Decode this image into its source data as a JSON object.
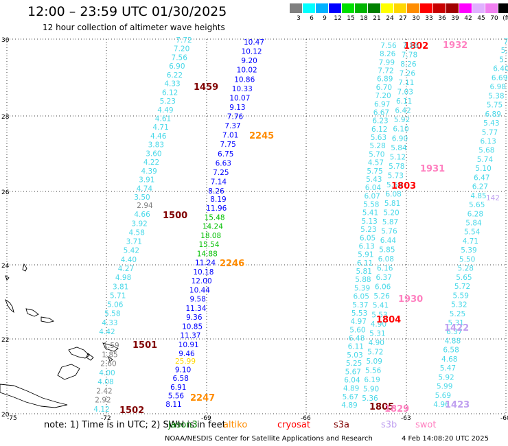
{
  "title": "12:00 – 23:59 UTC 01/30/2025",
  "subtitle": "12 hour collection of altimeter wave heights",
  "colorbar": {
    "ticks": [
      "3",
      "6",
      "9",
      "12",
      "15",
      "18",
      "21",
      "24",
      "27",
      "30",
      "33",
      "36",
      "39",
      "42",
      "45",
      "70",
      "(ft)"
    ],
    "colors": [
      "#808080",
      "#00ffff",
      "#00b2ff",
      "#0000ff",
      "#00e000",
      "#00b400",
      "#008000",
      "#ffff00",
      "#ffd700",
      "#ff8c00",
      "#ff0000",
      "#c80000",
      "#a00000",
      "#ff00ff",
      "#e0b0ff",
      "#f080f0",
      "#000000"
    ]
  },
  "axes": {
    "lon_labels": [
      "-75",
      "-72",
      "-69",
      "-66",
      "-63",
      "-60"
    ],
    "lat_labels": [
      "30",
      "28",
      "26",
      "24",
      "22",
      "20"
    ]
  },
  "tracks": [
    {
      "name": "track-1459",
      "color": "#48d8e8",
      "time": "1459",
      "time_color": "#800000",
      "values": [
        "7.72",
        "7.20",
        "7.56",
        "6.90",
        "6.22",
        "4.33",
        "6.12",
        "5.23",
        "4.49",
        "4.61",
        "4.71",
        "4.46",
        "3.83",
        "3.60",
        "4.22",
        "4.39",
        "3.91",
        "4.74",
        "3.50"
      ]
    },
    {
      "name": "track-1500",
      "color": "#48d8e8",
      "time": "1500",
      "time_color": "#800000",
      "values": [
        "2.94",
        "4.66",
        "3.92",
        "4.58",
        "3.71",
        "5.42",
        "4.40",
        "4.27",
        "4.98",
        "3.81",
        "5.71",
        "5.06",
        "5.58",
        "4.33",
        "4.42"
      ]
    },
    {
      "name": "track-1501",
      "color": "#808080",
      "time": "1501",
      "time_color": "#800000",
      "values": [
        "1.59",
        "1.85",
        "2.60",
        "4.00",
        "4.08",
        "2.42",
        "2.92",
        "4.12"
      ]
    },
    {
      "name": "track-2245",
      "color": "#0000ff",
      "time": "2245",
      "time_color": "#ff8c00",
      "values": [
        "10.47",
        "10.12",
        "9.20",
        "10.02",
        "10.86",
        "10.33",
        "10.07",
        "9.13",
        "7.76",
        "7.37",
        "7.01",
        "7.75",
        "6.75",
        "6.63",
        "7.25",
        "7.14",
        "8.26"
      ]
    },
    {
      "name": "track-2246",
      "color": "#0000ff",
      "time": "2246",
      "time_color": "#ff8c00",
      "values": [
        "8.19",
        "11.96",
        "15.48",
        "14.24",
        "18.08",
        "15.54",
        "14.88",
        "11.24",
        "10.18",
        "12.00",
        "10.44",
        "9.58",
        "11.34",
        "9.36",
        "10.85",
        "11.37",
        "10.91",
        "9.46"
      ]
    },
    {
      "name": "track-2247",
      "color": "#0000ff",
      "time": "2247",
      "time_color": "#ff8c00",
      "values": [
        "25.99",
        "9.10",
        "6.58",
        "6.91",
        "5.56",
        "8.11"
      ]
    },
    {
      "name": "track-1802",
      "color": "#48d8e8",
      "time": "1802",
      "time_color": "#ff0000",
      "values": [
        "7.56",
        "8.26",
        "7.99",
        "7.72",
        "6.89",
        "6.70",
        "7.20",
        "6.97",
        "6.67",
        "6.23",
        "6.12",
        "5.63",
        "5.28",
        "5.70",
        "4.57",
        "5.75",
        "5.43",
        "6.04",
        "6.07",
        "5.58",
        "5.41",
        "5.13",
        "5.23",
        "6.05",
        "6.13",
        "5.91",
        "6.11",
        "5.81",
        "5.88",
        "5.39",
        "6.05",
        "5.37",
        "5.53",
        "4.97",
        "5.60",
        "6.48",
        "6.11",
        "5.03",
        "5.25",
        "5.67",
        "6.04",
        "4.89",
        "5.67",
        "4.89"
      ]
    },
    {
      "name": "track-1803",
      "color": "#48d8e8",
      "time": "1803",
      "time_color": "#ff0000",
      "values": [
        "7.16",
        "7.78",
        "8.26",
        "7.26",
        "7.11",
        "7.03",
        "6.11",
        "6.42",
        "5.92",
        "6.10",
        "6.90",
        "5.84",
        "5.12",
        "5.78",
        "5.73",
        "5.54",
        "6.08",
        "5.81",
        "5.20",
        "5.87",
        "5.76",
        "6.44",
        "5.85",
        "6.08",
        "6.16",
        "6.37",
        "6.06",
        "5.26",
        "5.41",
        "5.53",
        "4.90",
        "5.31",
        "4.90",
        "5.72",
        "5.09",
        "5.56",
        "6.19",
        "5.90",
        "5.36"
      ]
    },
    {
      "name": "track-1931",
      "color": "#48d8e8",
      "time": "1931",
      "time_color": "#ff80c0",
      "values": [
        "7",
        "5.",
        "5.",
        "6.40",
        "6.69",
        "6.98",
        "5.38",
        "5.75",
        "6.89",
        "5.43",
        "5.77",
        "6.13",
        "5.68",
        "5.74",
        "5.10",
        "6.47",
        "6.27",
        "4.85",
        "5.65",
        "6.28",
        "5.84",
        "5.54",
        "4.71",
        "5.39",
        "5.50",
        "5.28",
        "5.65",
        "5.72",
        "5.59",
        "5.32",
        "5.25",
        "5.31",
        "6.37",
        "4.88",
        "6.58",
        "4.68",
        "5.47",
        "5.92",
        "5.99",
        "5.69",
        "4.96"
      ]
    },
    {
      "name": "track-1930",
      "color": "#ff80c0",
      "time": "1930",
      "time_color": "#ff80c0",
      "values": []
    },
    {
      "name": "track-1932",
      "color": "#ff80c0",
      "time": "1932",
      "time_color": "#ff80c0",
      "values": []
    },
    {
      "name": "track-1422",
      "color": "#c0a0f0",
      "time": "1422",
      "time_color": "#c0a0f0",
      "values": [
        "142"
      ]
    },
    {
      "name": "track-1423",
      "color": "#c0a0f0",
      "time": "1423",
      "time_color": "#c0a0f0",
      "values": []
    }
  ],
  "extra_labels": [
    {
      "name": "label-1804",
      "text": "1804",
      "color": "#ff0000"
    },
    {
      "name": "label-1805",
      "text": "1805",
      "color": "#800000"
    },
    {
      "name": "label-1829",
      "text": "1829",
      "color": "#ff80c0"
    },
    {
      "name": "label-1502",
      "text": "1502",
      "color": "#800000"
    }
  ],
  "note": {
    "prefix": "note:  1) Time is in UTC; 2) SWH is in feet",
    "missions": [
      {
        "text": "jason3",
        "color": "#008000"
      },
      {
        "text": "altiko",
        "color": "#ff8c00"
      },
      {
        "text": "cryosat",
        "color": "#ff0000"
      },
      {
        "text": "s3a",
        "color": "#800000"
      },
      {
        "text": "s3b",
        "color": "#c0a0f0"
      },
      {
        "text": "swot",
        "color": "#ff80c0"
      }
    ]
  },
  "credit": "NOAA/NESDIS Center for Satellite Applications and Research",
  "stamp": "4 Feb 14:08:20 UTC 2025"
}
